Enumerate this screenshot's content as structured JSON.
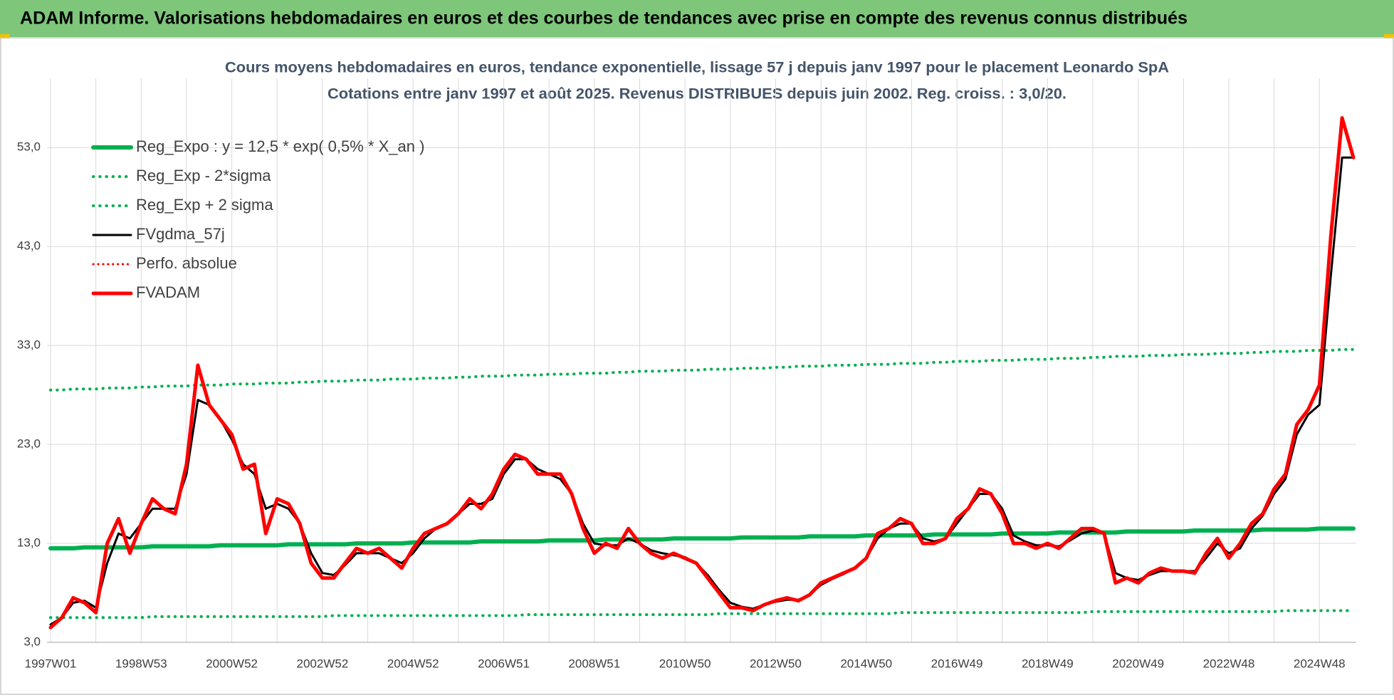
{
  "chart_data": {
    "type": "line",
    "header": "ADAM Informe. Valorisations hebdomadaires en euros et des courbes de tendances avec prise en compte des revenus connus distribués",
    "title": [
      "Cours moyens hebdomadaires en euros, tendance exponentielle, lissage 57 j depuis janv 1997 pour le placement Leonardo SpA",
      "Cotations entre janv 1997 et août 2025.  Revenus DISTRIBUES depuis juin 2002.  Reg. croiss. : 3,0/20."
    ],
    "categories": [
      "1997W01",
      null,
      null,
      null,
      null,
      null,
      null,
      null,
      "1998W53",
      null,
      null,
      null,
      null,
      null,
      null,
      null,
      "2000W52",
      null,
      null,
      null,
      null,
      null,
      null,
      null,
      "2002W52",
      null,
      null,
      null,
      null,
      null,
      null,
      null,
      "2004W52",
      null,
      null,
      null,
      null,
      null,
      null,
      null,
      "2006W51",
      null,
      null,
      null,
      null,
      null,
      null,
      null,
      "2008W51",
      null,
      null,
      null,
      null,
      null,
      null,
      null,
      "2010W50",
      null,
      null,
      null,
      null,
      null,
      null,
      null,
      "2012W50",
      null,
      null,
      null,
      null,
      null,
      null,
      null,
      "2014W50",
      null,
      null,
      null,
      null,
      null,
      null,
      null,
      "2016W49",
      null,
      null,
      null,
      null,
      null,
      null,
      null,
      "2018W49",
      null,
      null,
      null,
      null,
      null,
      null,
      null,
      "2020W49",
      null,
      null,
      null,
      null,
      null,
      null,
      null,
      "2022W48",
      null,
      null,
      null,
      null,
      null,
      null,
      null,
      "2024W48",
      null,
      null,
      null
    ],
    "ylim": [
      3,
      60
    ],
    "yticks": [
      {
        "value": 3,
        "label": "3,0"
      },
      {
        "value": 13,
        "label": "13,0"
      },
      {
        "value": 23,
        "label": "23,0"
      },
      {
        "value": 33,
        "label": "33,0"
      },
      {
        "value": 43,
        "label": "43,0"
      },
      {
        "value": 53,
        "label": "53,0"
      }
    ],
    "grid": true,
    "legend": "top-left",
    "series": [
      {
        "name": "Reg_Expo : y = 12,5 * exp( 0,5% *  X_an )",
        "color": "#00b050",
        "dash": "solid",
        "width": 6,
        "values": [
          12.5,
          12.5,
          12.5,
          12.6,
          12.6,
          12.6,
          12.6,
          12.6,
          12.6,
          12.7,
          12.7,
          12.7,
          12.7,
          12.7,
          12.7,
          12.8,
          12.8,
          12.8,
          12.8,
          12.8,
          12.8,
          12.9,
          12.9,
          12.9,
          12.9,
          12.9,
          12.9,
          13.0,
          13.0,
          13.0,
          13.0,
          13.0,
          13.1,
          13.1,
          13.1,
          13.1,
          13.1,
          13.1,
          13.2,
          13.2,
          13.2,
          13.2,
          13.2,
          13.2,
          13.3,
          13.3,
          13.3,
          13.3,
          13.3,
          13.4,
          13.4,
          13.4,
          13.4,
          13.4,
          13.4,
          13.5,
          13.5,
          13.5,
          13.5,
          13.5,
          13.5,
          13.6,
          13.6,
          13.6,
          13.6,
          13.6,
          13.6,
          13.7,
          13.7,
          13.7,
          13.7,
          13.7,
          13.8,
          13.8,
          13.8,
          13.8,
          13.8,
          13.8,
          13.9,
          13.9,
          13.9,
          13.9,
          13.9,
          13.9,
          14.0,
          14.0,
          14.0,
          14.0,
          14.0,
          14.1,
          14.1,
          14.1,
          14.1,
          14.1,
          14.1,
          14.2,
          14.2,
          14.2,
          14.2,
          14.2,
          14.2,
          14.3,
          14.3,
          14.3,
          14.3,
          14.3,
          14.3,
          14.4,
          14.4,
          14.4,
          14.4,
          14.4,
          14.5,
          14.5,
          14.5,
          14.5
        ]
      },
      {
        "name": "Reg_Exp - 2*sigma",
        "color": "#00b050",
        "dash": "dotted",
        "width": 4,
        "values": [
          5.5,
          5.5,
          5.5,
          5.5,
          5.5,
          5.5,
          5.5,
          5.5,
          5.5,
          5.6,
          5.6,
          5.6,
          5.6,
          5.6,
          5.6,
          5.6,
          5.6,
          5.6,
          5.6,
          5.6,
          5.6,
          5.6,
          5.6,
          5.6,
          5.6,
          5.7,
          5.7,
          5.7,
          5.7,
          5.7,
          5.7,
          5.7,
          5.7,
          5.7,
          5.7,
          5.7,
          5.7,
          5.7,
          5.7,
          5.7,
          5.7,
          5.7,
          5.8,
          5.8,
          5.8,
          5.8,
          5.8,
          5.8,
          5.8,
          5.8,
          5.8,
          5.8,
          5.8,
          5.8,
          5.8,
          5.8,
          5.8,
          5.8,
          5.8,
          5.9,
          5.9,
          5.9,
          5.9,
          5.9,
          5.9,
          5.9,
          5.9,
          5.9,
          5.9,
          5.9,
          5.9,
          5.9,
          5.9,
          5.9,
          5.9,
          6.0,
          6.0,
          6.0,
          6.0,
          6.0,
          6.0,
          6.0,
          6.0,
          6.0,
          6.0,
          6.0,
          6.0,
          6.0,
          6.0,
          6.0,
          6.0,
          6.0,
          6.1,
          6.1,
          6.1,
          6.1,
          6.1,
          6.1,
          6.1,
          6.1,
          6.1,
          6.1,
          6.1,
          6.1,
          6.1,
          6.1,
          6.1,
          6.1,
          6.1,
          6.2,
          6.2,
          6.2,
          6.2,
          6.2,
          6.2,
          6.2
        ]
      },
      {
        "name": "Reg_Exp + 2 sigma",
        "color": "#00b050",
        "dash": "dotted",
        "width": 4,
        "values": [
          28.5,
          28.5,
          28.6,
          28.6,
          28.6,
          28.7,
          28.7,
          28.7,
          28.8,
          28.8,
          28.9,
          28.9,
          28.9,
          29.0,
          29.0,
          29.0,
          29.1,
          29.1,
          29.1,
          29.2,
          29.2,
          29.2,
          29.3,
          29.3,
          29.4,
          29.4,
          29.4,
          29.5,
          29.5,
          29.5,
          29.6,
          29.6,
          29.6,
          29.7,
          29.7,
          29.7,
          29.8,
          29.8,
          29.9,
          29.9,
          29.9,
          30.0,
          30.0,
          30.0,
          30.1,
          30.1,
          30.1,
          30.2,
          30.2,
          30.2,
          30.3,
          30.3,
          30.4,
          30.4,
          30.4,
          30.5,
          30.5,
          30.5,
          30.6,
          30.6,
          30.6,
          30.7,
          30.7,
          30.7,
          30.8,
          30.8,
          30.9,
          30.9,
          30.9,
          31.0,
          31.0,
          31.0,
          31.1,
          31.1,
          31.1,
          31.2,
          31.2,
          31.2,
          31.3,
          31.3,
          31.4,
          31.4,
          31.4,
          31.5,
          31.5,
          31.5,
          31.6,
          31.6,
          31.6,
          31.7,
          31.7,
          31.7,
          31.8,
          31.8,
          31.9,
          31.9,
          31.9,
          32.0,
          32.0,
          32.0,
          32.1,
          32.1,
          32.1,
          32.2,
          32.2,
          32.2,
          32.3,
          32.3,
          32.4,
          32.4,
          32.4,
          32.5,
          32.5,
          32.5,
          32.6,
          32.6
        ]
      },
      {
        "name": "FVgdma_57j",
        "color": "#000000",
        "dash": "solid",
        "width": 3,
        "values": [
          4.8,
          5.5,
          7.0,
          7.2,
          6.5,
          11,
          14,
          13.5,
          15,
          16.5,
          16.5,
          16.5,
          20,
          27.5,
          27,
          25.5,
          23.5,
          21,
          20,
          16.5,
          17,
          16.5,
          15,
          12,
          10,
          9.8,
          10.8,
          12,
          12,
          12,
          11.5,
          11,
          12,
          13.5,
          14.5,
          15,
          16,
          17,
          17,
          17.5,
          20,
          21.5,
          21.5,
          20.5,
          20,
          19.5,
          18,
          15,
          13,
          12.8,
          12.8,
          13.5,
          13,
          12.3,
          12,
          11.8,
          11.6,
          11,
          9.8,
          8.3,
          7,
          6.6,
          6.4,
          6.8,
          7.1,
          7.3,
          7.3,
          7.8,
          8.8,
          9.4,
          9.9,
          10.5,
          11.5,
          13.5,
          14.5,
          15,
          15,
          13.5,
          13.2,
          13.5,
          15,
          16.5,
          18,
          18,
          16.5,
          13.8,
          13.2,
          12.8,
          12.8,
          12.7,
          13.3,
          14,
          14.3,
          14,
          10,
          9.5,
          9.3,
          9.8,
          10.2,
          10.2,
          10.2,
          10.2,
          11.5,
          13,
          12,
          12.5,
          14.5,
          15.8,
          18,
          19.5,
          24,
          26,
          27,
          40,
          52,
          52
        ]
      },
      {
        "name": "Perfo. absolue",
        "color": "#ff0000",
        "dash": "dotted",
        "width": 3,
        "values": [
          4.5,
          5.5,
          7.5,
          7.0,
          6.0,
          13,
          15.5,
          12,
          15,
          17.5,
          16.5,
          16,
          21,
          31,
          27,
          25.5,
          24,
          20.5,
          21,
          14,
          17.5,
          17,
          15,
          11,
          9.5,
          9.5,
          11,
          12.5,
          12,
          12.5,
          11.5,
          10.5,
          12.5,
          14,
          14.5,
          15,
          16,
          17.5,
          16.5,
          18,
          20.5,
          22,
          21.5,
          20,
          20,
          20,
          18,
          14.5,
          12,
          13,
          12.5,
          14.5,
          13,
          12,
          11.5,
          12,
          11.5,
          11,
          9.5,
          8,
          6.5,
          6.5,
          6.2,
          6.8,
          7.2,
          7.5,
          7.2,
          7.8,
          9,
          9.5,
          10,
          10.5,
          11.5,
          14,
          14.5,
          15.5,
          15,
          13,
          13,
          13.5,
          15.5,
          16.5,
          18.5,
          18,
          16,
          13,
          13,
          12.5,
          13,
          12.5,
          13.5,
          14.5,
          14.5,
          14,
          9,
          9.5,
          9,
          10,
          10.5,
          10.2,
          10.2,
          10,
          12,
          13.5,
          11.5,
          13,
          15,
          16,
          18.5,
          20,
          25,
          26.5,
          29,
          44,
          56,
          52
        ]
      },
      {
        "name": "FVADAM",
        "color": "#ff0000",
        "dash": "solid",
        "width": 5,
        "values": [
          4.5,
          5.5,
          7.5,
          7.0,
          6.0,
          13,
          15.5,
          12,
          15,
          17.5,
          16.5,
          16,
          21,
          31,
          27,
          25.5,
          24,
          20.5,
          21,
          14,
          17.5,
          17,
          15,
          11,
          9.5,
          9.5,
          11,
          12.5,
          12,
          12.5,
          11.5,
          10.5,
          12.5,
          14,
          14.5,
          15,
          16,
          17.5,
          16.5,
          18,
          20.5,
          22,
          21.5,
          20,
          20,
          20,
          18,
          14.5,
          12,
          13,
          12.5,
          14.5,
          13,
          12,
          11.5,
          12,
          11.5,
          11,
          9.5,
          8,
          6.5,
          6.5,
          6.2,
          6.8,
          7.2,
          7.5,
          7.2,
          7.8,
          9,
          9.5,
          10,
          10.5,
          11.5,
          14,
          14.5,
          15.5,
          15,
          13,
          13,
          13.5,
          15.5,
          16.5,
          18.5,
          18,
          16,
          13,
          13,
          12.5,
          13,
          12.5,
          13.5,
          14.5,
          14.5,
          14,
          9,
          9.5,
          9,
          10,
          10.5,
          10.2,
          10.2,
          10,
          12,
          13.5,
          11.5,
          13,
          15,
          16,
          18.5,
          20,
          25,
          26.5,
          29,
          44,
          56,
          52
        ]
      }
    ]
  }
}
